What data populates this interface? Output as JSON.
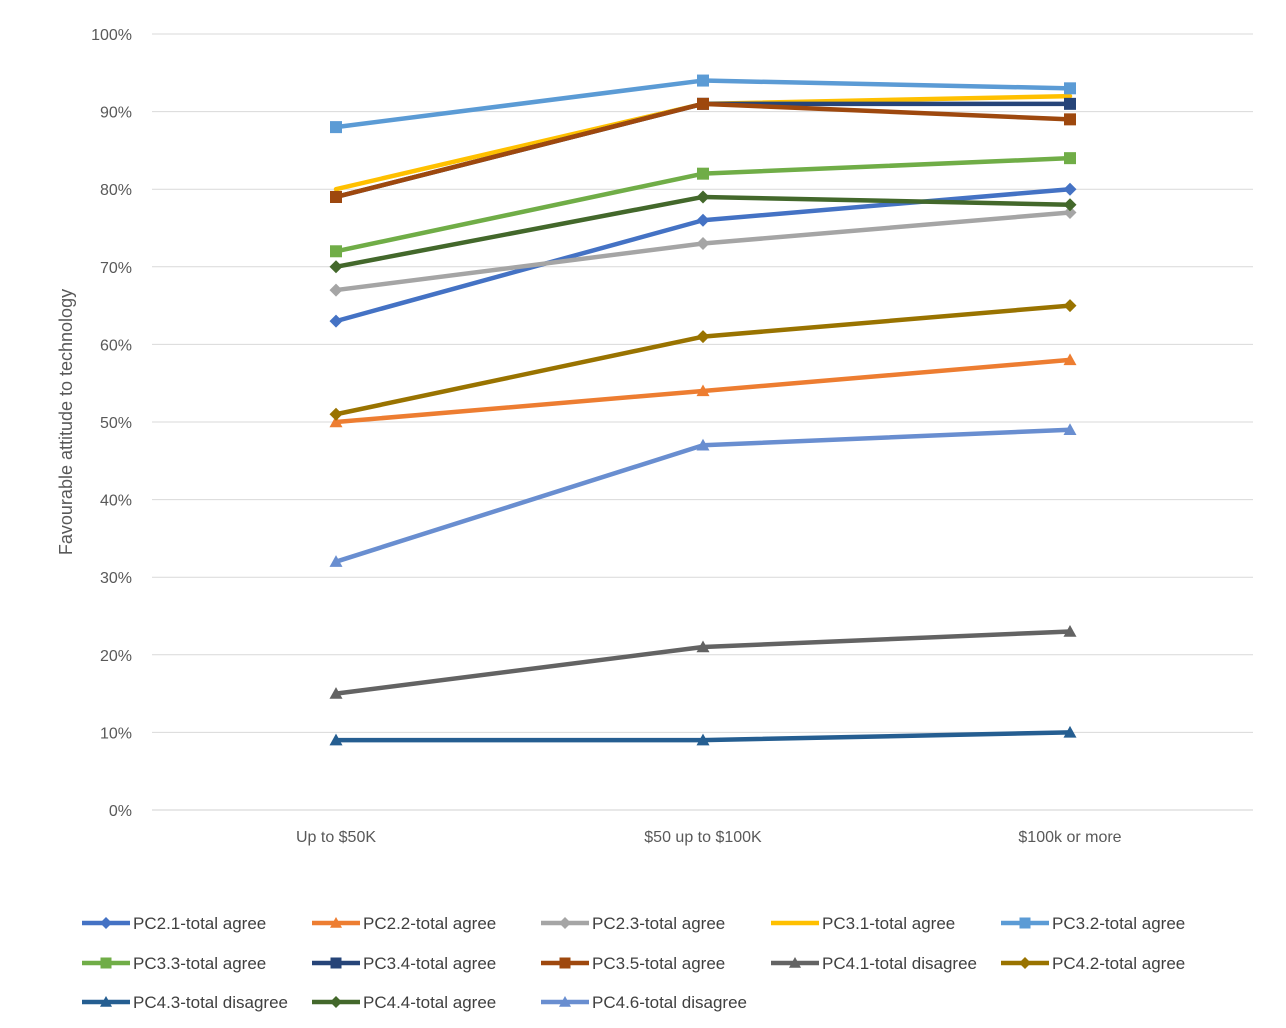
{
  "chart_data": {
    "type": "line",
    "title": "",
    "xlabel": "",
    "ylabel": "Favourable attitude to technology",
    "categories": [
      "Up to $50K",
      "$50 up to $100K",
      "$100k or more"
    ],
    "ylim": [
      0,
      100
    ],
    "y_ticks": [
      "0%",
      "10%",
      "20%",
      "30%",
      "40%",
      "50%",
      "60%",
      "70%",
      "80%",
      "90%",
      "100%"
    ],
    "y_tick_values": [
      0,
      10,
      20,
      30,
      40,
      50,
      60,
      70,
      80,
      90,
      100
    ],
    "y_unit": "percent",
    "grid": true,
    "legend_position": "bottom",
    "series": [
      {
        "name": "PC2.1-total agree",
        "values": [
          63,
          76,
          80
        ],
        "color": "#4472C4",
        "marker": "diamond"
      },
      {
        "name": "PC2.2-total agree",
        "values": [
          50,
          54,
          58
        ],
        "color": "#ED7D31",
        "marker": "triangle"
      },
      {
        "name": "PC2.3-total agree",
        "values": [
          67,
          73,
          77
        ],
        "color": "#A5A5A5",
        "marker": "diamond"
      },
      {
        "name": "PC3.1-total agree",
        "values": [
          80,
          91,
          92
        ],
        "color": "#FFC000",
        "marker": "none"
      },
      {
        "name": "PC3.2-total agree",
        "values": [
          88,
          94,
          93
        ],
        "color": "#5B9BD5",
        "marker": "square"
      },
      {
        "name": "PC3.3-total agree",
        "values": [
          72,
          82,
          84
        ],
        "color": "#70AD47",
        "marker": "square"
      },
      {
        "name": "PC3.4-total agree",
        "values": [
          79,
          91,
          91
        ],
        "color": "#264478",
        "marker": "square"
      },
      {
        "name": "PC3.5-total agree",
        "values": [
          79,
          91,
          89
        ],
        "color": "#9E480E",
        "marker": "square"
      },
      {
        "name": "PC4.1-total disagree",
        "values": [
          15,
          21,
          23
        ],
        "color": "#636363",
        "marker": "triangle"
      },
      {
        "name": "PC4.2-total agree",
        "values": [
          51,
          61,
          65
        ],
        "color": "#997300",
        "marker": "diamond"
      },
      {
        "name": "PC4.3-total disagree",
        "values": [
          9,
          9,
          10
        ],
        "color": "#255E91",
        "marker": "triangle"
      },
      {
        "name": "PC4.4-total agree",
        "values": [
          70,
          79,
          78
        ],
        "color": "#43682B",
        "marker": "diamond"
      },
      {
        "name": "PC4.6-total disagree",
        "values": [
          32,
          47,
          49
        ],
        "color": "#698ED0",
        "marker": "triangle"
      }
    ]
  }
}
